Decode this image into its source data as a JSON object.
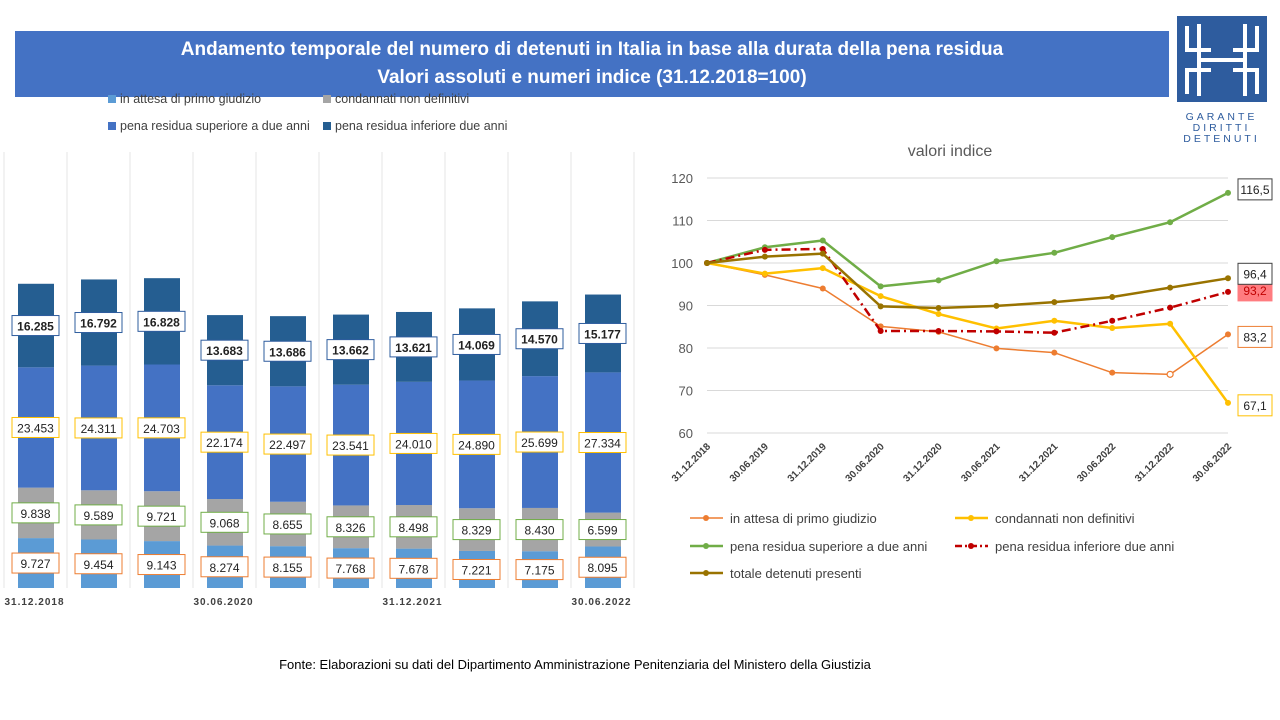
{
  "header": {
    "title_line1": "Andamento temporale del numero di detenuti in Italia in base alla durata della pena residua",
    "title_line2": "Valori assoluti e numeri indice (31.12.2018=100)"
  },
  "logo": {
    "line1": "GARANTE",
    "line2": "DIRITTI",
    "line3": "DETENUTI"
  },
  "colors": {
    "attesa": "#5B9BD5",
    "condannati": "#A5A5A5",
    "superiore": "#4472C4",
    "inferiore": "#255E91",
    "line_attesa": "#ED7D31",
    "line_condannati": "#FFC000",
    "line_superiore": "#70AD47",
    "line_inferiore": "#C00000",
    "line_totale": "#997300"
  },
  "footer": {
    "source": "Fonte:  Elaborazioni su dati del Dipartimento  Amministrazione  Penitenziaria del Ministero della Giustizia"
  },
  "chart_data": [
    {
      "type": "bar",
      "stacked": true,
      "categories": [
        "31.12.2018",
        "30.06.2019",
        "31.12.2019",
        "30.06.2020",
        "31.12.2020",
        "30.06.2021",
        "31.12.2021",
        "30.06.2022",
        "31.12.2022",
        "30.06.2022"
      ],
      "tick_labels_shown": [
        "31.12.2018",
        "",
        "",
        "30.06.2020",
        "",
        "",
        "31.12.2021",
        "",
        "",
        "30.06.2022"
      ],
      "series": [
        {
          "name": "in attesa di primo giudizio",
          "values": [
            9727,
            9454,
            9143,
            8274,
            8155,
            7768,
            7678,
            7221,
            7175,
            8095
          ],
          "labels": [
            "9.727",
            "9.454",
            "9.143",
            "8.274",
            "8.155",
            "7.768",
            "7.678",
            "7.221",
            "7.175",
            "8.095"
          ]
        },
        {
          "name": "condannati non definitivi",
          "values": [
            9838,
            9589,
            9721,
            9068,
            8655,
            8326,
            8498,
            8329,
            8430,
            6599
          ],
          "labels": [
            "9.838",
            "9.589",
            "9.721",
            "9.068",
            "8.655",
            "8.326",
            "8.498",
            "8.329",
            "8.430",
            "6.599"
          ]
        },
        {
          "name": "pena residua superiore a due anni",
          "values": [
            23453,
            24311,
            24703,
            22174,
            22497,
            23541,
            24010,
            24890,
            25699,
            27334
          ],
          "labels": [
            "23.453",
            "24.311",
            "24.703",
            "22.174",
            "22.497",
            "23.541",
            "24.010",
            "24.890",
            "25.699",
            "27.334"
          ]
        },
        {
          "name": "pena residua inferiore due anni",
          "values": [
            16285,
            16792,
            16828,
            13683,
            13686,
            13662,
            13621,
            14069,
            14570,
            15177
          ],
          "labels": [
            "16.285",
            "16.792",
            "16.828",
            "13.683",
            "13.686",
            "13.662",
            "13.621",
            "14.069",
            "14.570",
            "15.177"
          ]
        }
      ],
      "legend": "top",
      "grid": false
    },
    {
      "type": "line",
      "title": "valori indice",
      "categories": [
        "31.12.2018",
        "30.06.2019",
        "31.12.2019",
        "30.06.2020",
        "31.12.2020",
        "30.06.2021",
        "31.12.2021",
        "30.06.2022",
        "31.12.2022",
        "30.06.2022"
      ],
      "ylim": [
        60,
        120
      ],
      "yticks": [
        60,
        70,
        80,
        90,
        100,
        110,
        120
      ],
      "grid": true,
      "legend": "bottom",
      "series": [
        {
          "name": "in attesa di primo giudizio",
          "values": [
            100,
            97.2,
            94.0,
            85.1,
            83.8,
            79.9,
            78.9,
            74.2,
            73.8,
            83.2
          ],
          "end_label": "83,2"
        },
        {
          "name": "condannati non definitivi",
          "values": [
            100,
            97.5,
            98.8,
            92.2,
            88.0,
            84.6,
            86.4,
            84.7,
            85.7,
            67.1
          ],
          "end_label": "67,1"
        },
        {
          "name": "pena residua superiore a due anni",
          "values": [
            100,
            103.7,
            105.3,
            94.5,
            95.9,
            100.4,
            102.4,
            106.1,
            109.6,
            116.5
          ],
          "end_label": "116,5"
        },
        {
          "name": "pena residua inferiore due anni",
          "values": [
            100,
            103.1,
            103.3,
            84.0,
            84.0,
            83.9,
            83.6,
            86.4,
            89.5,
            93.2
          ],
          "end_label": "93,2"
        },
        {
          "name": "totale detenuti presenti",
          "values": [
            100,
            101.5,
            102.2,
            89.8,
            89.4,
            89.9,
            90.8,
            92.0,
            94.2,
            96.4
          ],
          "end_label": "96,4"
        }
      ]
    }
  ]
}
